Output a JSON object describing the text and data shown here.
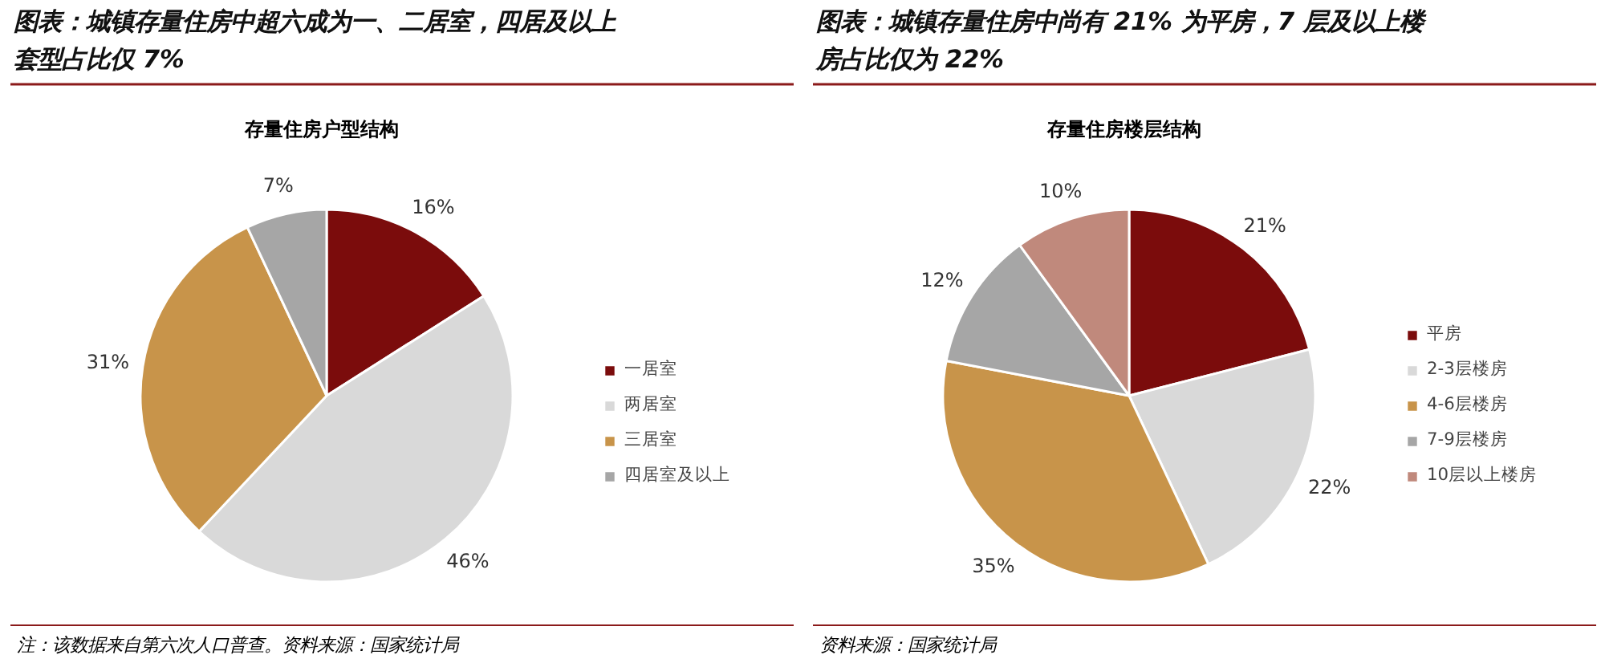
{
  "chart_data": [
    {
      "type": "pie",
      "title": "图表：城镇存量住房中超六成为一、二居室，四居及以上套型占比仅 7%",
      "subtitle": "存量住房户型结构",
      "annotations": [
        "注：该数据来自第六次人口普查。资料来源：国家统计局"
      ],
      "categories": [
        "一居室",
        "两居室",
        "三居室",
        "四居室及以上"
      ],
      "values": [
        16,
        46,
        31,
        7
      ],
      "value_labels": [
        "16%",
        "46%",
        "31%",
        "7%"
      ],
      "colors": [
        "#7b0c0c",
        "#d9d9d9",
        "#c8944a",
        "#a6a6a6"
      ],
      "legend": "right"
    },
    {
      "type": "pie",
      "title": "图表：城镇存量住房中尚有 21% 为平房，7 层及以上楼房占比仅为 22%",
      "subtitle": "存量住房楼层结构",
      "annotations": [
        "资料来源：国家统计局"
      ],
      "categories": [
        "平房",
        "2-3层楼房",
        "4-6层楼房",
        "7-9层楼房",
        "10层以上楼房"
      ],
      "values": [
        21,
        22,
        35,
        12,
        10
      ],
      "value_labels": [
        "21%",
        "22%",
        "35%",
        "12%",
        "10%"
      ],
      "colors": [
        "#7b0c0c",
        "#d9d9d9",
        "#c8944a",
        "#a6a6a6",
        "#c0897c"
      ],
      "legend": "right"
    }
  ]
}
